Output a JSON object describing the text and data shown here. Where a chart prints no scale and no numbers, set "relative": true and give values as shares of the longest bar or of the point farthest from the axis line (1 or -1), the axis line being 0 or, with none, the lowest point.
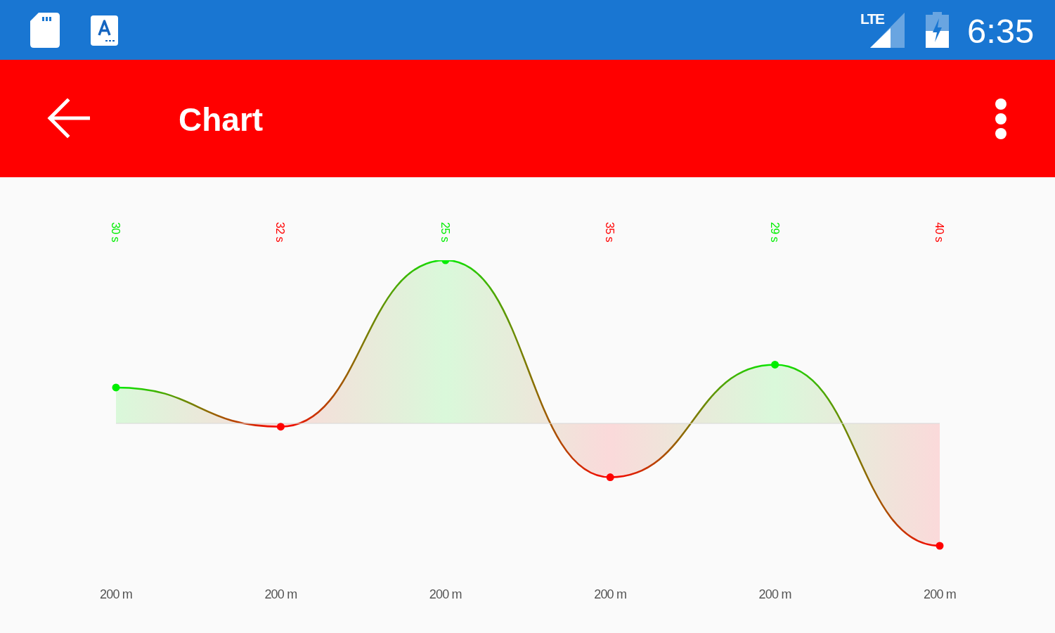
{
  "chart_data": {
    "type": "area",
    "title": "Chart",
    "categories": [
      "200 m",
      "200 m",
      "200 m",
      "200 m",
      "200 m",
      "200 m"
    ],
    "values": [
      0.22,
      -0.02,
      1,
      -0.33,
      0.36,
      -0.75
    ],
    "colors": [
      "#00ee00",
      "#ff0000",
      "#00ee00",
      "#ff0000",
      "#00ee00",
      "#ff0000"
    ],
    "relative": true,
    "marker": "circle",
    "annotations": [
      "LTE",
      "6:35",
      "30 s",
      "32 s",
      "25 s",
      "35 s",
      "29 s",
      "40 s"
    ]
  }
}
